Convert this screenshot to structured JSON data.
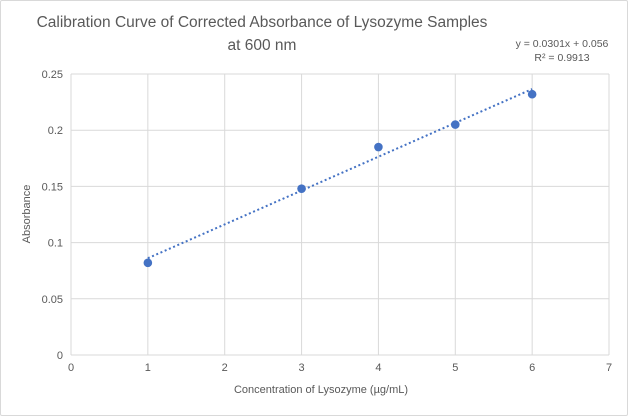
{
  "window": {
    "background": "#ffffff",
    "border_color": "#d9d9d9"
  },
  "chart_data": {
    "type": "scatter",
    "title": "Calibration Curve of Corrected Absorbance of Lysozyme Samples at 600 nm",
    "title_lines": {
      "line1": "Calibration Curve of Corrected Absorbance of Lysozyme Samples",
      "line2": "at 600 nm"
    },
    "xlabel": "Concentration of Lysozyme (µg/mL)",
    "ylabel": "Absorbance",
    "x": [
      1,
      3,
      4,
      5,
      6
    ],
    "y": [
      0.082,
      0.148,
      0.185,
      0.205,
      0.232
    ],
    "xlim": [
      0,
      7
    ],
    "ylim": [
      0,
      0.25
    ],
    "xticks": [
      "0",
      "1",
      "2",
      "3",
      "4",
      "5",
      "6",
      "7"
    ],
    "yticks": [
      "0",
      "0.05",
      "0.1",
      "0.15",
      "0.2",
      "0.25"
    ],
    "grid": true,
    "legend": false,
    "trendline": {
      "slope": 0.0301,
      "intercept": 0.056,
      "x_start": 1,
      "x_end": 6,
      "style": "dotted",
      "equation_label": "y = 0.0301x + 0.056",
      "r_squared_label": "R² = 0.9913"
    },
    "colors": {
      "marker": "#4472c4",
      "trendline": "#4472c4",
      "gridline": "#d9d9d9",
      "axis_line": "#d9d9d9",
      "tick_label": "#595959",
      "title": "#595959"
    }
  }
}
